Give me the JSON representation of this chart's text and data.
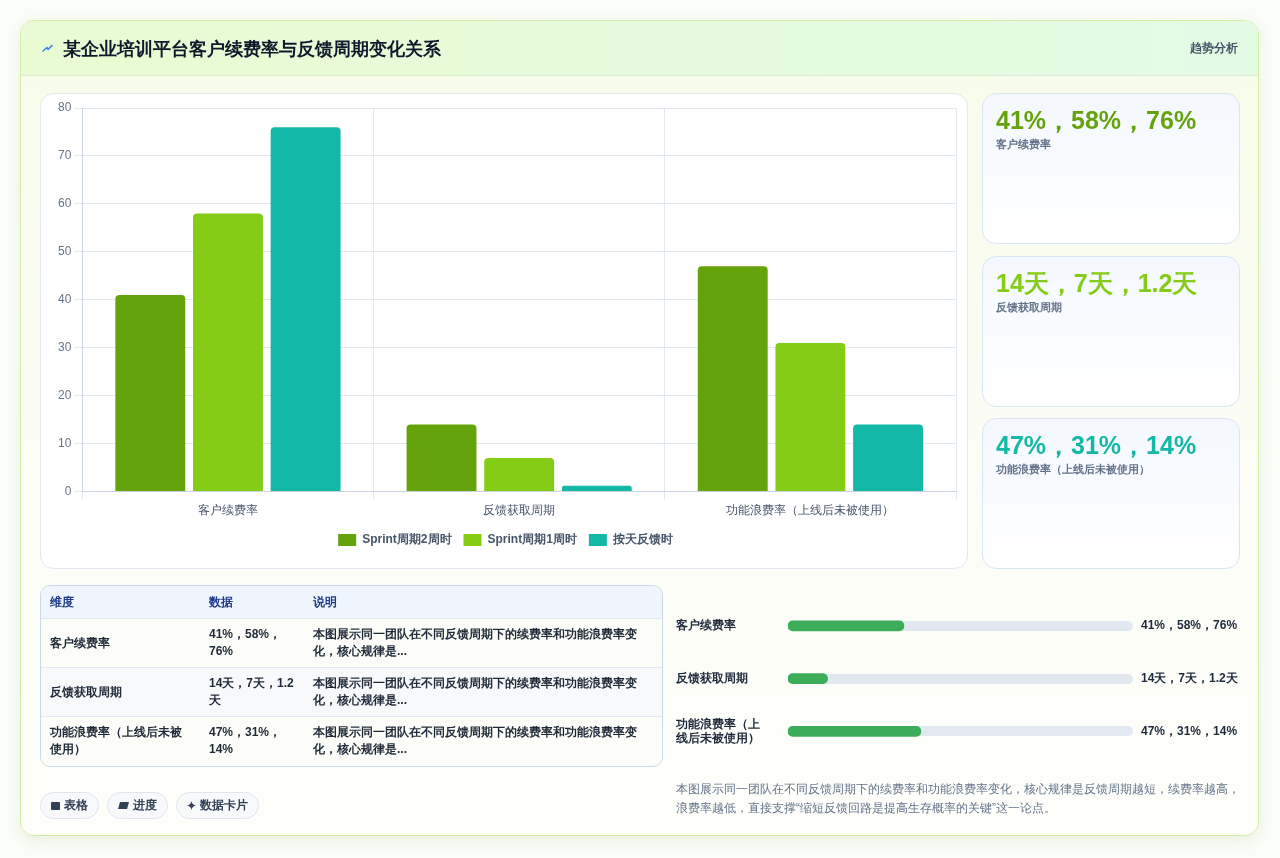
{
  "chart_data": [
    {
      "type": "bar",
      "title": "某企业培训平台客户续费率与反馈周期变化关系",
      "categories": [
        "客户续费率",
        "反馈获取周期",
        "功能浪费率（上线后未被使用）"
      ],
      "series": [
        {
          "name": "Sprint周期2周时",
          "color": "#65a30d",
          "values": [
            41,
            14,
            47
          ]
        },
        {
          "name": "Sprint周期1周时",
          "color": "#84cc16",
          "values": [
            58,
            7,
            31
          ]
        },
        {
          "name": "按天反馈时",
          "color": "#14b8a6",
          "values": [
            76,
            1.2,
            14
          ]
        }
      ],
      "ylim": [
        0,
        80
      ],
      "yticks": [
        0,
        10,
        20,
        30,
        40,
        50,
        60,
        70,
        80
      ],
      "grid": true,
      "legend": "bottom"
    },
    {
      "type": "other",
      "title": "趋势分析",
      "annotations": [
        "41%，58%，76%",
        "客户续费率",
        "14天，7天，1.2天",
        "反馈获取周期",
        "47%，31%，14%",
        "功能浪费率（上线后未被使用）"
      ],
      "colors": [
        "#65a30d",
        "#84cc16",
        "#14b8a6"
      ]
    },
    {
      "type": "other",
      "annotations": [
        "维度",
        "数据",
        "说明",
        "客户续费率",
        "41%，58%，76%",
        "本图展示同一团队在不同反馈周期下的续费率和功能浪费率变化，核心规律是...",
        "反馈获取周期",
        "14天，7天，1.2天",
        "本图展示同一团队在不同反馈周期下的续费率和功能浪费率变化，核心规律是...",
        "功能浪费率（上线后未被使用）",
        "47%，31%，14%",
        "本图展示同一团队在不同反馈周期下的续费率和功能浪费率变化，核心规律是..."
      ]
    },
    {
      "type": "bar",
      "orientation": "horizontal",
      "categories": [
        "客户续费率",
        "反馈获取周期",
        "功能浪费率（上线后未被使用）"
      ],
      "values": [
        41,
        14,
        47
      ],
      "color": "#3cad59",
      "value_labels": [
        "41%，58%，76%",
        "14天，7天，1.2天",
        "47%，31%，14%"
      ],
      "xlim": [
        0,
        122
      ],
      "tick_labels": "y",
      "annotations": [
        "本图展示同一团队在不同反馈周期下的续费率和功能浪费率变化，核心规律是反馈周期越短，续费率越高，浪费率越低，直接支撑“缩短反馈回路是提高生存概率的关键”这一论点。"
      ]
    },
    {
      "type": "other",
      "annotations": [
        "表格",
        "进度",
        "数据卡片"
      ]
    }
  ]
}
